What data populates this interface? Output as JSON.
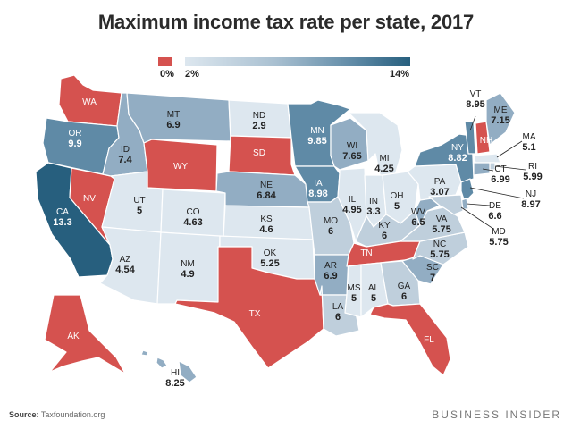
{
  "title": "Maximum income tax rate per state, 2017",
  "legend": {
    "zero_label": "0%",
    "low_label": "2%",
    "high_label": "14%"
  },
  "colors": {
    "zero": "#d5524f",
    "lightest": "#dde7ef",
    "light": "#bfcfdc",
    "mid": "#92adc3",
    "dark": "#5f8aa6",
    "darkest": "#275f7e"
  },
  "source": {
    "label": "Source:",
    "text": "Taxfoundation.org"
  },
  "brand": "BUSINESS INSIDER",
  "states": [
    {
      "abbr": "WA",
      "rate": ""
    },
    {
      "abbr": "OR",
      "rate": "9.9"
    },
    {
      "abbr": "CA",
      "rate": "13.3"
    },
    {
      "abbr": "NV",
      "rate": ""
    },
    {
      "abbr": "ID",
      "rate": "7.4"
    },
    {
      "abbr": "MT",
      "rate": "6.9"
    },
    {
      "abbr": "WY",
      "rate": ""
    },
    {
      "abbr": "UT",
      "rate": "5"
    },
    {
      "abbr": "AZ",
      "rate": "4.54"
    },
    {
      "abbr": "CO",
      "rate": "4.63"
    },
    {
      "abbr": "NM",
      "rate": "4.9"
    },
    {
      "abbr": "ND",
      "rate": "2.9"
    },
    {
      "abbr": "SD",
      "rate": ""
    },
    {
      "abbr": "NE",
      "rate": "6.84"
    },
    {
      "abbr": "KS",
      "rate": "4.6"
    },
    {
      "abbr": "OK",
      "rate": "5.25"
    },
    {
      "abbr": "TX",
      "rate": ""
    },
    {
      "abbr": "MN",
      "rate": "9.85"
    },
    {
      "abbr": "IA",
      "rate": "8.98"
    },
    {
      "abbr": "MO",
      "rate": "6"
    },
    {
      "abbr": "AR",
      "rate": "6.9"
    },
    {
      "abbr": "LA",
      "rate": "6"
    },
    {
      "abbr": "WI",
      "rate": "7.65"
    },
    {
      "abbr": "IL",
      "rate": "4.95"
    },
    {
      "abbr": "MI",
      "rate": "4.25"
    },
    {
      "abbr": "IN",
      "rate": "3.3"
    },
    {
      "abbr": "OH",
      "rate": "5"
    },
    {
      "abbr": "KY",
      "rate": "6"
    },
    {
      "abbr": "TN",
      "rate": ""
    },
    {
      "abbr": "MS",
      "rate": "5"
    },
    {
      "abbr": "AL",
      "rate": "5"
    },
    {
      "abbr": "GA",
      "rate": "6"
    },
    {
      "abbr": "FL",
      "rate": ""
    },
    {
      "abbr": "SC",
      "rate": "7"
    },
    {
      "abbr": "NC",
      "rate": "5.75"
    },
    {
      "abbr": "VA",
      "rate": "5.75"
    },
    {
      "abbr": "WV",
      "rate": "6.5"
    },
    {
      "abbr": "PA",
      "rate": "3.07"
    },
    {
      "abbr": "NY",
      "rate": "8.82"
    },
    {
      "abbr": "VT",
      "rate": "8.95"
    },
    {
      "abbr": "NH",
      "rate": ""
    },
    {
      "abbr": "ME",
      "rate": "7.15"
    },
    {
      "abbr": "MA",
      "rate": "5.1"
    },
    {
      "abbr": "RI",
      "rate": "5.99"
    },
    {
      "abbr": "CT",
      "rate": "6.99"
    },
    {
      "abbr": "NJ",
      "rate": "8.97"
    },
    {
      "abbr": "DE",
      "rate": "6.6"
    },
    {
      "abbr": "MD",
      "rate": "5.75"
    },
    {
      "abbr": "AK",
      "rate": ""
    },
    {
      "abbr": "HI",
      "rate": "8.25"
    }
  ]
}
